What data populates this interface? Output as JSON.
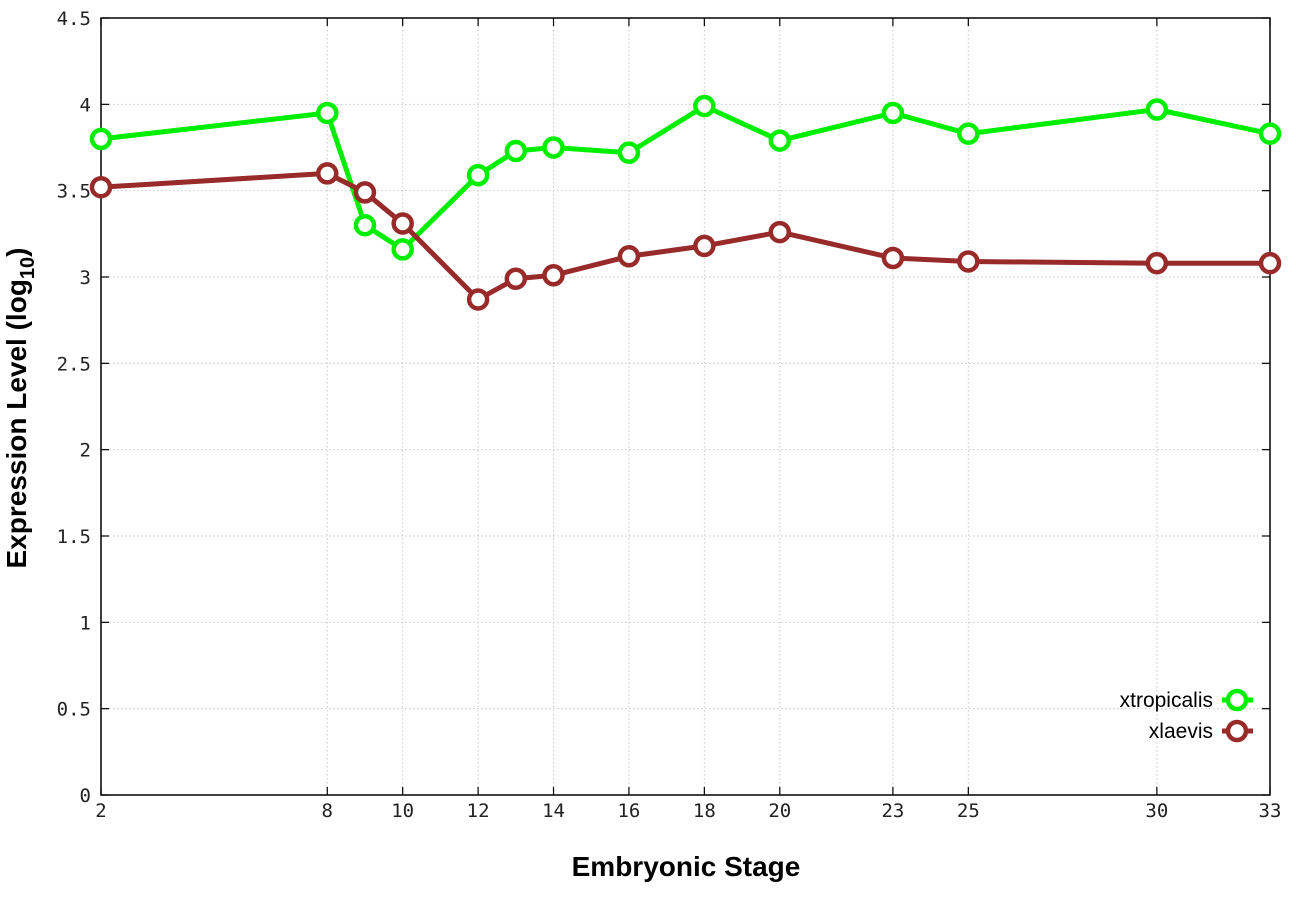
{
  "chart_data": {
    "type": "line",
    "xlabel": "Embryonic Stage",
    "ylabel_main": "Expression Level (log",
    "ylabel_sub": "10",
    "ylabel_close": ")",
    "x_ticks": [
      "2",
      "8",
      "10",
      "12",
      "14",
      "16",
      "18",
      "20",
      "23",
      "25",
      "30",
      "33"
    ],
    "y_ticks": [
      "0",
      "0.5",
      "1",
      "1.5",
      "2",
      "2.5",
      "3",
      "3.5",
      "4",
      "4.5"
    ],
    "xlim": [
      2,
      33
    ],
    "ylim": [
      0,
      4.5
    ],
    "grid": true,
    "legend_position": "bottom-right",
    "x": [
      2,
      8,
      9,
      10,
      12,
      13,
      14,
      16,
      18,
      20,
      23,
      25,
      30,
      33
    ],
    "series": [
      {
        "name": "xtropicalis",
        "color": "#00ee00",
        "values": [
          3.8,
          3.95,
          3.3,
          3.16,
          3.59,
          3.73,
          3.75,
          3.72,
          3.99,
          3.79,
          3.95,
          3.83,
          3.97,
          3.83
        ]
      },
      {
        "name": "xlaevis",
        "color": "#982a2a",
        "values": [
          3.52,
          3.6,
          3.49,
          3.31,
          2.87,
          2.99,
          3.01,
          3.12,
          3.18,
          3.26,
          3.11,
          3.09,
          3.08,
          3.08
        ]
      }
    ]
  }
}
